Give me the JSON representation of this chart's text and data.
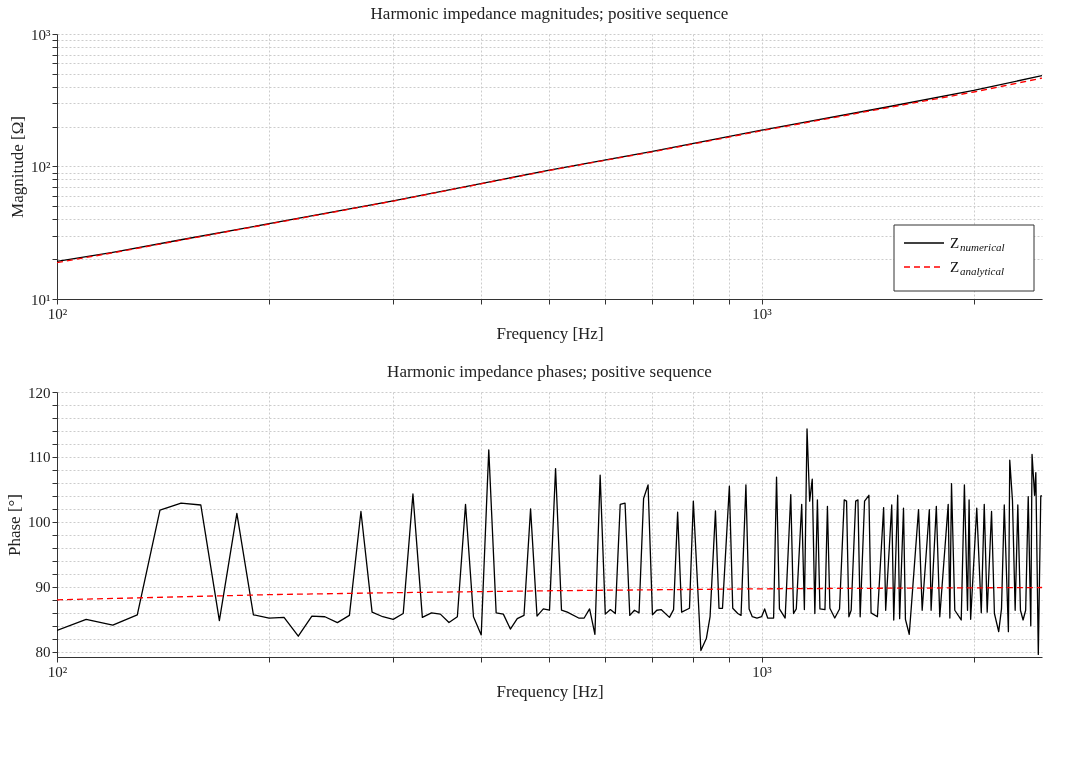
{
  "chart_data": [
    {
      "type": "line",
      "title": "Harmonic impedance magnitudes; positive sequence",
      "xlabel": "Frequency [Hz]",
      "ylabel": "Magnitude [Ω]",
      "log": "xy",
      "grid": true,
      "legend": "bottom right",
      "xlim": [
        100,
        2500
      ],
      "xticks": [
        {
          "value": 100,
          "label": "10²"
        },
        {
          "value": 200,
          "label": null
        },
        {
          "value": 300,
          "label": null
        },
        {
          "value": 400,
          "label": null
        },
        {
          "value": 500,
          "label": null
        },
        {
          "value": 600,
          "label": null
        },
        {
          "value": 700,
          "label": null
        },
        {
          "value": 800,
          "label": null
        },
        {
          "value": 900,
          "label": null
        },
        {
          "value": 1000,
          "label": "10³"
        },
        {
          "value": 2000,
          "label": null
        }
      ],
      "ylim": [
        10,
        1000
      ],
      "yticks": [
        {
          "value": 10,
          "label": "10¹"
        },
        {
          "value": 20,
          "label": null
        },
        {
          "value": 30,
          "label": null
        },
        {
          "value": 40,
          "label": null
        },
        {
          "value": 50,
          "label": null
        },
        {
          "value": 60,
          "label": null
        },
        {
          "value": 70,
          "label": null
        },
        {
          "value": 80,
          "label": null
        },
        {
          "value": 90,
          "label": null
        },
        {
          "value": 100,
          "label": "10²"
        },
        {
          "value": 200,
          "label": null
        },
        {
          "value": 300,
          "label": null
        },
        {
          "value": 400,
          "label": null
        },
        {
          "value": 500,
          "label": null
        },
        {
          "value": 600,
          "label": null
        },
        {
          "value": 700,
          "label": null
        },
        {
          "value": 800,
          "label": null
        },
        {
          "value": 900,
          "label": null
        },
        {
          "value": 1000,
          "label": "10³"
        }
      ],
      "series": [
        {
          "name": "Z$_{numerical}$",
          "color": "#000000",
          "line_style": "solid",
          "x": [
            100,
            120,
            150,
            200,
            300,
            500,
            700,
            1000,
            1500,
            2000,
            2500
          ],
          "values": [
            19.2,
            22.5,
            28,
            37,
            55,
            94,
            130,
            188,
            280,
            375,
            485
          ]
        },
        {
          "name": "Z$_{analytical}$",
          "color": "#ff0000",
          "line_style": "dashed",
          "x": [
            100,
            120,
            150,
            200,
            300,
            500,
            700,
            1000,
            1500,
            2000,
            2500
          ],
          "values": [
            18.8,
            22.3,
            27.8,
            36.8,
            54.8,
            93.5,
            129,
            186,
            276,
            365,
            465
          ]
        }
      ]
    },
    {
      "type": "line",
      "title": "Harmonic impedance phases; positive sequence",
      "xlabel": "Frequency [Hz]",
      "ylabel": "Phase [°]",
      "log": "x",
      "grid": true,
      "xlim": [
        100,
        2500
      ],
      "xticks": [
        {
          "value": 100,
          "label": "10²"
        },
        {
          "value": 200,
          "label": null
        },
        {
          "value": 300,
          "label": null
        },
        {
          "value": 400,
          "label": null
        },
        {
          "value": 500,
          "label": null
        },
        {
          "value": 600,
          "label": null
        },
        {
          "value": 700,
          "label": null
        },
        {
          "value": 800,
          "label": null
        },
        {
          "value": 900,
          "label": null
        },
        {
          "value": 1000,
          "label": "10³"
        },
        {
          "value": 2000,
          "label": null
        }
      ],
      "ylim": [
        79.2,
        120
      ],
      "yticks": [
        80,
        {
          "value": 82,
          "label": null
        },
        {
          "value": 84,
          "label": null
        },
        {
          "value": 86,
          "label": null
        },
        {
          "value": 88,
          "label": null
        },
        90,
        {
          "value": 92,
          "label": null
        },
        {
          "value": 94,
          "label": null
        },
        {
          "value": 96,
          "label": null
        },
        {
          "value": 98,
          "label": null
        },
        100,
        {
          "value": 102,
          "label": null
        },
        {
          "value": 104,
          "label": null
        },
        {
          "value": 106,
          "label": null
        },
        {
          "value": 108,
          "label": null
        },
        110,
        {
          "value": 112,
          "label": null
        },
        {
          "value": 114,
          "label": null
        },
        {
          "value": 116,
          "label": null
        },
        {
          "value": 118,
          "label": null
        },
        120
      ],
      "series": [
        {
          "color": "#000000",
          "line_style": "solid",
          "x": [
            100,
            110,
            120,
            130,
            140,
            150,
            160,
            170,
            180,
            190,
            200,
            210,
            220,
            230,
            240,
            250,
            260,
            270,
            280,
            290,
            300,
            310,
            320,
            330,
            340,
            350,
            360,
            370,
            380,
            390,
            400,
            410,
            420,
            430,
            440,
            450,
            460,
            470,
            480,
            490,
            500,
            510,
            520,
            530,
            550,
            560,
            570,
            580,
            590,
            600,
            610,
            620,
            630,
            640,
            650,
            660,
            670,
            680,
            690,
            700,
            710,
            720,
            740,
            750,
            760,
            770,
            790,
            800,
            820,
            835,
            845,
            860,
            870,
            880,
            900,
            910,
            925,
            935,
            950,
            960,
            970,
            985,
            1000,
            1010,
            1020,
            1040,
            1050,
            1060,
            1080,
            1100,
            1110,
            1120,
            1140,
            1150,
            1160,
            1170,
            1180,
            1190,
            1200,
            1210,
            1230,
            1240,
            1250,
            1270,
            1290,
            1310,
            1320,
            1330,
            1340,
            1360,
            1370,
            1380,
            1400,
            1420,
            1430,
            1460,
            1490,
            1500,
            1530,
            1540,
            1560,
            1570,
            1590,
            1600,
            1620,
            1630,
            1670,
            1690,
            1730,
            1740,
            1770,
            1790,
            1840,
            1850,
            1860,
            1880,
            1920,
            1940,
            1960,
            1970,
            1980,
            2020,
            2050,
            2070,
            2090,
            2120,
            2140,
            2170,
            2190,
            2210,
            2240,
            2250,
            2270,
            2290,
            2310,
            2330,
            2350,
            2370,
            2390,
            2410,
            2420,
            2440,
            2450,
            2470,
            2490,
            2500
          ],
          "values": [
            83.3,
            85.0,
            84.1,
            85.7,
            101.8,
            102.9,
            102.6,
            84.8,
            101.3,
            85.7,
            85.2,
            85.3,
            82.4,
            85.5,
            85.4,
            84.5,
            85.6,
            101.6,
            86.1,
            85.4,
            85.0,
            85.9,
            104.3,
            85.3,
            86.0,
            85.8,
            84.5,
            85.4,
            102.7,
            85.4,
            82.6,
            111.1,
            86.0,
            85.8,
            83.5,
            85.1,
            85.6,
            102.0,
            85.5,
            86.6,
            86.4,
            108.2,
            86.4,
            86.1,
            85.2,
            85.2,
            86.6,
            82.7,
            107.2,
            85.8,
            86.5,
            85.9,
            102.7,
            102.9,
            85.6,
            86.4,
            86.0,
            103.6,
            105.7,
            85.7,
            86.4,
            86.5,
            85.3,
            86.5,
            101.5,
            86.1,
            86.7,
            103.2,
            80.2,
            82.1,
            85.4,
            101.7,
            86.7,
            86.7,
            105.5,
            86.7,
            85.9,
            85.6,
            105.7,
            86.6,
            85.4,
            85.2,
            85.4,
            86.6,
            85.2,
            85.2,
            106.9,
            86.6,
            85.2,
            104.2,
            85.9,
            86.6,
            102.7,
            86.5,
            114.3,
            103.2,
            106.6,
            85.9,
            103.4,
            86.6,
            86.5,
            102.4,
            86.7,
            85.2,
            86.6,
            103.4,
            103.2,
            85.4,
            86.4,
            103.2,
            103.4,
            85.4,
            103.2,
            104.1,
            86.0,
            85.4,
            102.2,
            86.4,
            102.6,
            84.9,
            104.1,
            85.1,
            102.1,
            85.0,
            82.7,
            86.5,
            101.9,
            86.4,
            101.9,
            86.4,
            102.4,
            85.4,
            102.7,
            85.2,
            105.9,
            86.4,
            84.9,
            105.7,
            86.4,
            103.4,
            85.0,
            102.1,
            86.0,
            102.7,
            86.1,
            101.6,
            85.9,
            83.1,
            86.6,
            102.6,
            83.1,
            109.5,
            103.3,
            86.4,
            102.6,
            86.4,
            84.9,
            86.4,
            103.9,
            84.0,
            110.4,
            104.1,
            107.6,
            79.6,
            104.0,
            104.0
          ]
        },
        {
          "color": "#ff0000",
          "line_style": "dashed",
          "x": [
            100,
            200,
            300,
            500,
            1000,
            2500
          ],
          "values": [
            88.0,
            88.8,
            89.1,
            89.4,
            89.7,
            89.9
          ]
        }
      ]
    }
  ]
}
